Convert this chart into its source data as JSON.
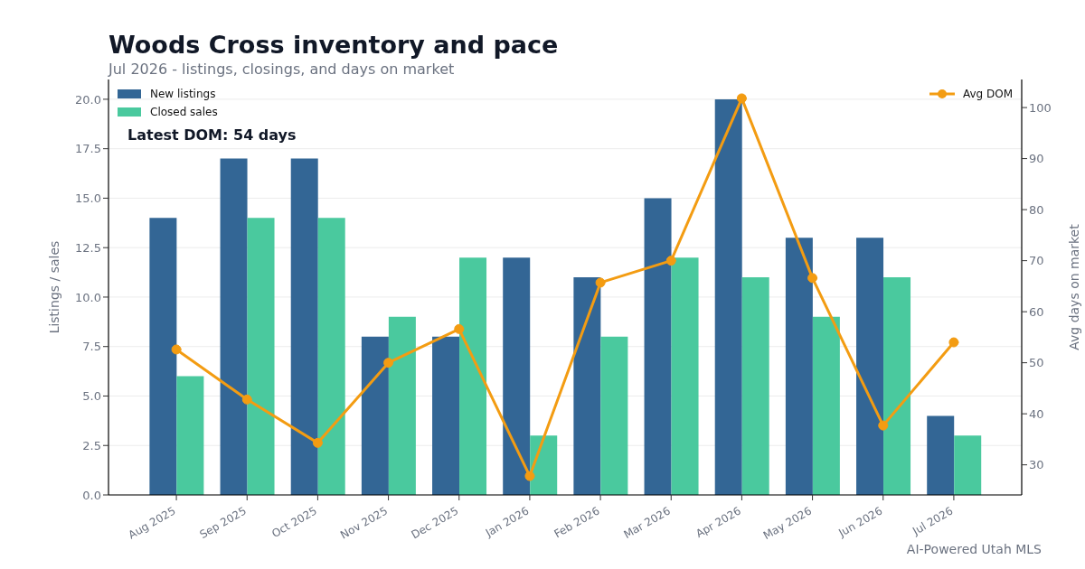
{
  "chart_data": {
    "type": "bar",
    "title": "Woods Cross inventory and pace",
    "subtitle": "Jul 2026 - listings, closings, and days on market",
    "ylabel": "Listings / sales",
    "y2label": "Avg days on market",
    "categories": [
      "Aug 2025",
      "Sep 2025",
      "Oct 2025",
      "Nov 2025",
      "Dec 2025",
      "Jan 2026",
      "Feb 2026",
      "Mar 2026",
      "Apr 2026",
      "May 2026",
      "Jun 2026",
      "Jul 2026"
    ],
    "series": [
      {
        "name": "New listings",
        "color": "#336695",
        "values": [
          14,
          17,
          17,
          8,
          8,
          12,
          11,
          15,
          20,
          13,
          13,
          4
        ]
      },
      {
        "name": "Closed sales",
        "color": "#4ac99e",
        "values": [
          6,
          14,
          14,
          9,
          12,
          3,
          8,
          12,
          11,
          9,
          11,
          3
        ]
      },
      {
        "name": "Avg DOM",
        "type": "line",
        "axis": "y2",
        "color": "#f39c12",
        "values": [
          52.6,
          42.8,
          34.3,
          50.0,
          56.6,
          27.8,
          65.7,
          70.0,
          101.8,
          66.6,
          37.7,
          54.0
        ]
      }
    ],
    "ylim": [
      0,
      21
    ],
    "yticks": [
      {
        "value": 0,
        "label": "0.0"
      },
      2.5,
      {
        "value": 5,
        "label": "5.0"
      },
      7.5,
      {
        "value": 10,
        "label": "10.0"
      },
      12.5,
      {
        "value": 15,
        "label": "15.0"
      },
      17.5,
      {
        "value": 20,
        "label": "20.0"
      }
    ],
    "y2lim": [
      24.1,
      105.5
    ],
    "y2ticks": [
      30,
      40,
      50,
      60,
      70,
      80,
      90,
      100
    ],
    "grid": "y",
    "legend": "top",
    "marker": "circle",
    "line_style": "solid",
    "annotations": [
      "Latest DOM: 54 days",
      "AI-Powered Utah MLS"
    ]
  }
}
